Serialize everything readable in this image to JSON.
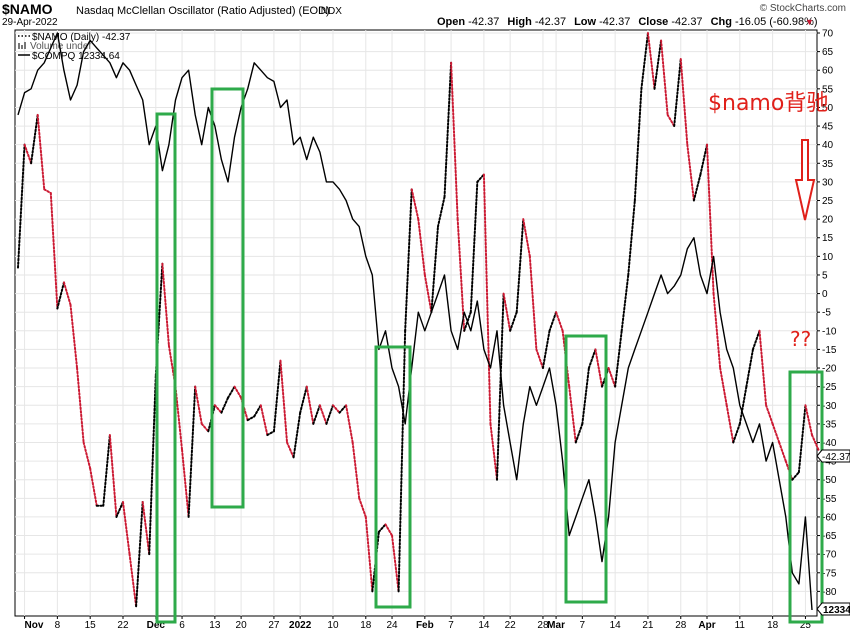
{
  "header": {
    "symbol": "$NAMO",
    "name": "Nasdaq McClellan Oscillator (Ratio Adjusted) (EOD)",
    "exchange": "INDX",
    "date": "29-Apr-2022",
    "watermark": "© StockCharts.com",
    "ohlc": [
      {
        "label": "Open",
        "value": "-42.37"
      },
      {
        "label": "High",
        "value": "-42.37"
      },
      {
        "label": "Low",
        "value": "-42.37"
      },
      {
        "label": "Close",
        "value": "-42.37"
      },
      {
        "label": "Chg",
        "value": "-16.05 (-60.98%)"
      }
    ],
    "chg_arrow": "▼"
  },
  "legend": {
    "items": [
      {
        "label": "$NAMO (Daily) -42.37",
        "style": "dotted"
      },
      {
        "label": "Volume undef",
        "style": "bars"
      },
      {
        "label": "$COMPQ 12334.64",
        "style": "solid"
      }
    ]
  },
  "annotations": {
    "divergence_label": "$namo背驰",
    "question_label": "??",
    "arrow_icon": "red-down-arrow-icon",
    "box_color": "#2eaa4a",
    "annotation_color": "#e0201a"
  },
  "last_value_tags": {
    "namo": "-42.37",
    "compq": "12334."
  },
  "chart_data": {
    "type": "line",
    "title": "Nasdaq McClellan Oscillator (Ratio Adjusted) (EOD)",
    "y_axis": {
      "min": -85,
      "max": 70,
      "ticks": [
        70,
        65,
        60,
        55,
        50,
        45,
        40,
        35,
        30,
        25,
        20,
        15,
        10,
        5,
        0,
        -5,
        -10,
        -15,
        -20,
        -25,
        -30,
        -35,
        -40,
        -45,
        -50,
        -55,
        -60,
        -65,
        -70,
        -75,
        -80
      ],
      "side": "right"
    },
    "x_axis": {
      "min": 0,
      "max": 121,
      "ticks": [
        {
          "label": "Nov",
          "x": 1
        },
        {
          "label": "8",
          "x": 6
        },
        {
          "label": "15",
          "x": 11
        },
        {
          "label": "22",
          "x": 16
        },
        {
          "label": "Dec",
          "x": 21
        },
        {
          "label": "6",
          "x": 25
        },
        {
          "label": "13",
          "x": 30
        },
        {
          "label": "20",
          "x": 34
        },
        {
          "label": "27",
          "x": 39
        },
        {
          "label": "2022",
          "x": 43
        },
        {
          "label": "10",
          "x": 48
        },
        {
          "label": "18",
          "x": 53
        },
        {
          "label": "24",
          "x": 57
        },
        {
          "label": "Feb",
          "x": 62
        },
        {
          "label": "7",
          "x": 66
        },
        {
          "label": "14",
          "x": 71
        },
        {
          "label": "22",
          "x": 75
        },
        {
          "label": "28",
          "x": 80
        },
        {
          "label": "Mar",
          "x": 82
        },
        {
          "label": "7",
          "x": 86
        },
        {
          "label": "14",
          "x": 91
        },
        {
          "label": "21",
          "x": 96
        },
        {
          "label": "28",
          "x": 101
        },
        {
          "label": "Apr",
          "x": 105
        },
        {
          "label": "11",
          "x": 110
        },
        {
          "label": "18",
          "x": 115
        },
        {
          "label": "25",
          "x": 120
        }
      ]
    },
    "grid": true,
    "legend_position": "top-left",
    "series": [
      {
        "name": "$NAMO (Daily)",
        "style": "dotted",
        "color_up": "#000000",
        "color_down": "#cc1a33",
        "values": [
          7,
          40,
          35,
          48,
          28,
          27,
          -4,
          3,
          -3,
          -20,
          -40,
          -47,
          -57,
          -57,
          -38,
          -60,
          -56,
          -70,
          -84,
          -56,
          -70,
          -22,
          8,
          -14,
          -25,
          -42,
          -60,
          -25,
          -35,
          -37,
          -30,
          -32,
          -28,
          -25,
          -28,
          -34,
          -33,
          -30,
          -38,
          -37,
          -18,
          -40,
          -44,
          -32,
          -25,
          -35,
          -30,
          -35,
          -30,
          -32,
          -30,
          -40,
          -55,
          -60,
          -80,
          -64,
          -62,
          -65,
          -80,
          -10,
          28,
          20,
          5,
          -5,
          18,
          26,
          62,
          20,
          -10,
          -5,
          30,
          32,
          -35,
          -50,
          0,
          -10,
          -5,
          20,
          10,
          -15,
          -20,
          -10,
          -5,
          -10,
          -25,
          -40,
          -35,
          -20,
          -15,
          -25,
          -20,
          -25,
          -10,
          5,
          25,
          55,
          70,
          55,
          68,
          48,
          45,
          63,
          40,
          25,
          32,
          40,
          0,
          -20,
          -30,
          -40,
          -35,
          -25,
          -15,
          -10,
          -30,
          -35,
          -40,
          -45,
          -50,
          -48,
          -30,
          -38,
          -42
        ]
      },
      {
        "name": "$COMPQ",
        "style": "solid",
        "color": "#000000",
        "values": [
          48,
          54,
          55,
          60,
          62,
          66,
          70,
          60,
          52,
          56,
          65,
          68,
          66,
          64,
          62,
          58,
          62,
          60,
          56,
          52,
          40,
          45,
          33,
          40,
          52,
          58,
          60,
          48,
          40,
          50,
          45,
          36,
          30,
          42,
          50,
          55,
          62,
          60,
          58,
          57,
          50,
          52,
          40,
          42,
          36,
          42,
          38,
          30,
          30,
          28,
          25,
          20,
          18,
          10,
          5,
          -15,
          -10,
          -20,
          -25,
          -35,
          -20,
          -5,
          -10,
          -5,
          0,
          5,
          -10,
          -15,
          -5,
          -10,
          -2,
          -15,
          -20,
          -10,
          -30,
          -40,
          -50,
          -35,
          -25,
          -30,
          -25,
          -20,
          -30,
          -45,
          -65,
          -60,
          -55,
          -50,
          -60,
          -72,
          -60,
          -40,
          -30,
          -20,
          -15,
          -10,
          -5,
          0,
          5,
          0,
          2,
          5,
          12,
          15,
          5,
          0,
          10,
          -5,
          -15,
          -20,
          -30,
          -35,
          -40,
          -35,
          -45,
          -40,
          -50,
          -60,
          -75,
          -78,
          -60,
          -85
        ]
      }
    ]
  }
}
